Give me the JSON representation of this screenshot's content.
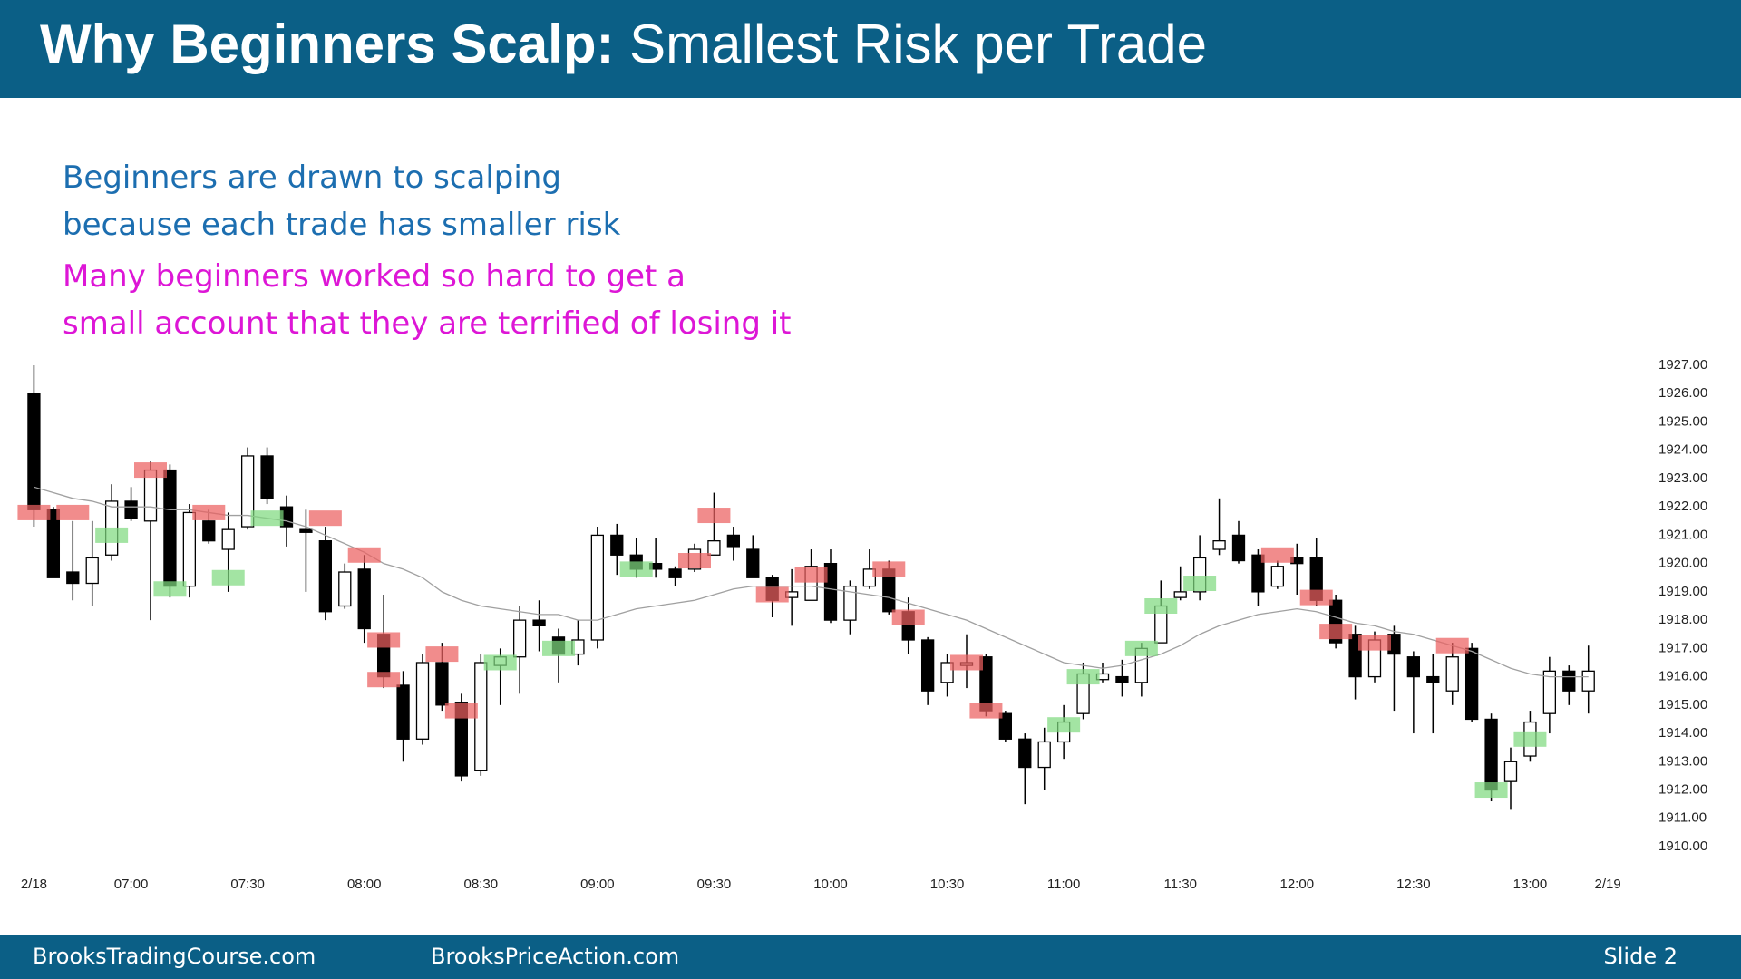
{
  "header": {
    "title_bold": "Why Beginners Scalp:",
    "title_rest": "Smallest Risk per Trade"
  },
  "text": {
    "blue": [
      "Beginners are drawn to scalping",
      "because each trade has smaller risk"
    ],
    "magenta": [
      "Many beginners worked so hard to get a",
      "small account that they are terrified of losing it"
    ]
  },
  "footer": {
    "left": "BrooksTradingCourse.com",
    "middle": "BrooksPriceAction.com",
    "right": "Slide  2"
  },
  "chart_data": {
    "type": "candlestick",
    "xlim": [
      -1,
      83
    ],
    "xticks": [
      {
        "value": 0,
        "label": "2/18"
      },
      {
        "value": 5,
        "label": "07:00"
      },
      {
        "value": 11,
        "label": "07:30"
      },
      {
        "value": 17,
        "label": "08:00"
      },
      {
        "value": 23,
        "label": "08:30"
      },
      {
        "value": 29,
        "label": "09:00"
      },
      {
        "value": 35,
        "label": "09:30"
      },
      {
        "value": 41,
        "label": "10:00"
      },
      {
        "value": 47,
        "label": "10:30"
      },
      {
        "value": 53,
        "label": "11:00"
      },
      {
        "value": 59,
        "label": "11:30"
      },
      {
        "value": 65,
        "label": "12:00"
      },
      {
        "value": 71,
        "label": "12:30"
      },
      {
        "value": 77,
        "label": "13:00"
      },
      {
        "value": 81,
        "label": "2/19"
      }
    ],
    "ylim": [
      1910,
      1927
    ],
    "yticks": [
      {
        "value": 1910,
        "label": "1910.00"
      },
      {
        "value": 1911,
        "label": "1911.00"
      },
      {
        "value": 1912,
        "label": "1912.00"
      },
      {
        "value": 1913,
        "label": "1913.00"
      },
      {
        "value": 1914,
        "label": "1914.00"
      },
      {
        "value": 1915,
        "label": "1915.00"
      },
      {
        "value": 1916,
        "label": "1916.00"
      },
      {
        "value": 1917,
        "label": "1917.00"
      },
      {
        "value": 1918,
        "label": "1918.00"
      },
      {
        "value": 1919,
        "label": "1919.00"
      },
      {
        "value": 1920,
        "label": "1920.00"
      },
      {
        "value": 1921,
        "label": "1921.00"
      },
      {
        "value": 1922,
        "label": "1922.00"
      },
      {
        "value": 1923,
        "label": "1923.00"
      },
      {
        "value": 1924,
        "label": "1924.00"
      },
      {
        "value": 1925,
        "label": "1925.00"
      },
      {
        "value": 1926,
        "label": "1926.00"
      },
      {
        "value": 1927,
        "label": "1927.00"
      }
    ],
    "up_color": "#ffffff",
    "down_color": "#000000",
    "open": [
      1926,
      1921.9,
      1919.7,
      1919.3,
      1920.3,
      1922.2,
      1921.5,
      1923.3,
      1919.2,
      1921.5,
      1920.5,
      1921.3,
      1923.8,
      1922.0,
      1921.2,
      1920.8,
      1918.5,
      1919.8,
      1917.5,
      1915.7,
      1913.8,
      1916.5,
      1915.1,
      1912.7,
      1916.4,
      1916.7,
      1918.0,
      1917.4,
      1916.8,
      1917.3,
      1921.0,
      1920.3,
      1920.0,
      1919.8,
      1919.8,
      1920.3,
      1921.0,
      1920.5,
      1919.5,
      1918.8,
      1918.7,
      1920.0,
      1918.0,
      1919.2,
      1919.8,
      1918.3,
      1917.3,
      1915.8,
      1916.4,
      1916.7,
      1914.7,
      1913.8,
      1912.8,
      1913.7,
      1914.7,
      1915.9,
      1916.0,
      1915.8,
      1917.2,
      1918.8,
      1919.0,
      1920.5,
      1921.0,
      1920.3,
      1919.2,
      1920.2,
      1920.2,
      1918.7,
      1917.5,
      1916.0,
      1917.5,
      1916.7,
      1916.0,
      1915.5,
      1917.0,
      1914.5,
      1912.3,
      1913.2,
      1914.7,
      1916.2,
      1915.5
    ],
    "high": [
      1927,
      1922,
      1921.5,
      1921.5,
      1922.8,
      1922.7,
      1923.6,
      1923.5,
      1922.1,
      1921.9,
      1921.8,
      1924.1,
      1924.1,
      1922.4,
      1921.9,
      1921.3,
      1920.0,
      1920.3,
      1918.9,
      1916.2,
      1916.8,
      1917.2,
      1915.4,
      1916.8,
      1917.0,
      1918.5,
      1918.7,
      1917.7,
      1918.0,
      1921.3,
      1921.4,
      1920.9,
      1920.9,
      1919.9,
      1920.7,
      1922.5,
      1921.3,
      1921.0,
      1919.6,
      1919.8,
      1920.5,
      1920.5,
      1919.4,
      1920.5,
      1920.1,
      1918.8,
      1917.4,
      1916.8,
      1917.5,
      1916.8,
      1914.8,
      1914.0,
      1914.2,
      1915.0,
      1916.5,
      1916.5,
      1916.6,
      1917.2,
      1919.4,
      1919.9,
      1921.0,
      1922.3,
      1921.5,
      1920.5,
      1920.1,
      1920.7,
      1920.9,
      1918.9,
      1917.8,
      1917.6,
      1917.8,
      1916.9,
      1916.8,
      1917.2,
      1917.2,
      1914.7,
      1913.5,
      1914.8,
      1916.7,
      1916.4,
      1917.1
    ],
    "low": [
      1921.3,
      1919.5,
      1918.7,
      1918.5,
      1920.1,
      1921.5,
      1918.0,
      1918.8,
      1918.8,
      1920.7,
      1919.0,
      1921.2,
      1922.1,
      1920.6,
      1919.0,
      1918.0,
      1918.4,
      1917.2,
      1915.6,
      1913.0,
      1913.6,
      1914.8,
      1912.3,
      1912.5,
      1915.0,
      1915.4,
      1916.9,
      1915.8,
      1916.4,
      1917.0,
      1919.6,
      1919.5,
      1919.5,
      1919.2,
      1919.7,
      1920.3,
      1920.1,
      1919.5,
      1918.1,
      1917.8,
      1918.7,
      1917.9,
      1917.5,
      1919.1,
      1918.2,
      1916.8,
      1915.0,
      1915.3,
      1915.6,
      1914.6,
      1913.7,
      1911.5,
      1912.0,
      1913.1,
      1914.5,
      1915.8,
      1915.3,
      1915.3,
      1917.2,
      1918.7,
      1918.7,
      1920.3,
      1920.0,
      1918.5,
      1919.1,
      1918.9,
      1918.5,
      1917.0,
      1915.2,
      1915.8,
      1914.8,
      1914.0,
      1914.0,
      1915.0,
      1914.4,
      1911.6,
      1911.3,
      1913.0,
      1914.0,
      1915.0,
      1914.7
    ],
    "close": [
      1921.9,
      1919.5,
      1919.3,
      1920.2,
      1922.2,
      1921.6,
      1923.3,
      1919.2,
      1921.8,
      1920.8,
      1921.2,
      1923.8,
      1922.3,
      1921.3,
      1921.1,
      1918.3,
      1919.7,
      1917.7,
      1916.0,
      1913.8,
      1916.5,
      1915.0,
      1912.5,
      1916.5,
      1916.7,
      1918.0,
      1917.8,
      1916.8,
      1917.3,
      1921.0,
      1920.3,
      1919.8,
      1919.8,
      1919.5,
      1920.5,
      1920.8,
      1920.6,
      1919.5,
      1918.7,
      1919.0,
      1919.9,
      1918.0,
      1919.2,
      1919.8,
      1918.3,
      1917.3,
      1915.5,
      1916.5,
      1916.5,
      1914.8,
      1913.8,
      1912.8,
      1913.7,
      1914.4,
      1916.1,
      1916.1,
      1915.8,
      1917.0,
      1918.5,
      1919.0,
      1920.2,
      1920.8,
      1920.1,
      1919.0,
      1919.9,
      1920.0,
      1918.7,
      1917.2,
      1916.0,
      1917.3,
      1916.8,
      1916.0,
      1915.8,
      1916.7,
      1914.5,
      1912.0,
      1913.0,
      1914.4,
      1916.2,
      1915.5,
      1916.2
    ],
    "moving_average": {
      "color": "#a0a0a0",
      "values": [
        1922.7,
        1922.5,
        1922.3,
        1922.2,
        1922.0,
        1922.0,
        1922.0,
        1921.9,
        1921.9,
        1921.8,
        1921.7,
        1921.7,
        1921.6,
        1921.5,
        1921.3,
        1921.0,
        1920.7,
        1920.4,
        1920.0,
        1919.8,
        1919.5,
        1919.0,
        1918.7,
        1918.5,
        1918.4,
        1918.3,
        1918.2,
        1918.2,
        1918.0,
        1918.0,
        1918.2,
        1918.4,
        1918.5,
        1918.6,
        1918.7,
        1918.9,
        1919.1,
        1919.2,
        1919.2,
        1919.2,
        1919.2,
        1919.1,
        1919.0,
        1918.9,
        1918.8,
        1918.6,
        1918.4,
        1918.2,
        1918.0,
        1917.7,
        1917.4,
        1917.1,
        1916.8,
        1916.5,
        1916.4,
        1916.3,
        1916.4,
        1916.6,
        1916.8,
        1917.1,
        1917.5,
        1917.8,
        1918.0,
        1918.2,
        1918.3,
        1918.4,
        1918.3,
        1918.1,
        1917.9,
        1917.8,
        1917.6,
        1917.5,
        1917.3,
        1917.1,
        1916.9,
        1916.6,
        1916.3,
        1916.1,
        1916.0,
        1916.0,
        1916.0
      ]
    },
    "signals": [
      {
        "bar": 0,
        "price": 1921.8,
        "color": "#ec5f5f"
      },
      {
        "bar": 2,
        "price": 1921.8,
        "color": "#ec5f5f"
      },
      {
        "bar": 6,
        "price": 1923.3,
        "color": "#ec5f5f"
      },
      {
        "bar": 9,
        "price": 1921.8,
        "color": "#ec5f5f"
      },
      {
        "bar": 15,
        "price": 1921.6,
        "color": "#ec5f5f"
      },
      {
        "bar": 17,
        "price": 1920.3,
        "color": "#ec5f5f"
      },
      {
        "bar": 18,
        "price": 1917.3,
        "color": "#ec5f5f"
      },
      {
        "bar": 18,
        "price": 1915.9,
        "color": "#ec5f5f"
      },
      {
        "bar": 21,
        "price": 1916.8,
        "color": "#ec5f5f"
      },
      {
        "bar": 22,
        "price": 1914.8,
        "color": "#ec5f5f"
      },
      {
        "bar": 34,
        "price": 1920.1,
        "color": "#ec5f5f"
      },
      {
        "bar": 35,
        "price": 1921.7,
        "color": "#ec5f5f"
      },
      {
        "bar": 38,
        "price": 1918.9,
        "color": "#ec5f5f"
      },
      {
        "bar": 40,
        "price": 1919.6,
        "color": "#ec5f5f"
      },
      {
        "bar": 44,
        "price": 1919.8,
        "color": "#ec5f5f"
      },
      {
        "bar": 45,
        "price": 1918.1,
        "color": "#ec5f5f"
      },
      {
        "bar": 48,
        "price": 1916.5,
        "color": "#ec5f5f"
      },
      {
        "bar": 49,
        "price": 1914.8,
        "color": "#ec5f5f"
      },
      {
        "bar": 64,
        "price": 1920.3,
        "color": "#ec5f5f"
      },
      {
        "bar": 66,
        "price": 1918.8,
        "color": "#ec5f5f"
      },
      {
        "bar": 67,
        "price": 1917.6,
        "color": "#ec5f5f"
      },
      {
        "bar": 69,
        "price": 1917.2,
        "color": "#ec5f5f"
      },
      {
        "bar": 73,
        "price": 1917.1,
        "color": "#ec5f5f"
      },
      {
        "bar": 4,
        "price": 1921.0,
        "color": "#7fd97f"
      },
      {
        "bar": 7,
        "price": 1919.1,
        "color": "#7fd97f"
      },
      {
        "bar": 10,
        "price": 1919.5,
        "color": "#7fd97f"
      },
      {
        "bar": 12,
        "price": 1921.6,
        "color": "#7fd97f"
      },
      {
        "bar": 24,
        "price": 1916.5,
        "color": "#7fd97f"
      },
      {
        "bar": 27,
        "price": 1917.0,
        "color": "#7fd97f"
      },
      {
        "bar": 31,
        "price": 1919.8,
        "color": "#7fd97f"
      },
      {
        "bar": 53,
        "price": 1914.3,
        "color": "#7fd97f"
      },
      {
        "bar": 54,
        "price": 1916.0,
        "color": "#7fd97f"
      },
      {
        "bar": 57,
        "price": 1917.0,
        "color": "#7fd97f"
      },
      {
        "bar": 58,
        "price": 1918.5,
        "color": "#7fd97f"
      },
      {
        "bar": 60,
        "price": 1919.3,
        "color": "#7fd97f"
      },
      {
        "bar": 75,
        "price": 1912.0,
        "color": "#7fd97f"
      },
      {
        "bar": 77,
        "price": 1913.8,
        "color": "#7fd97f"
      }
    ]
  }
}
